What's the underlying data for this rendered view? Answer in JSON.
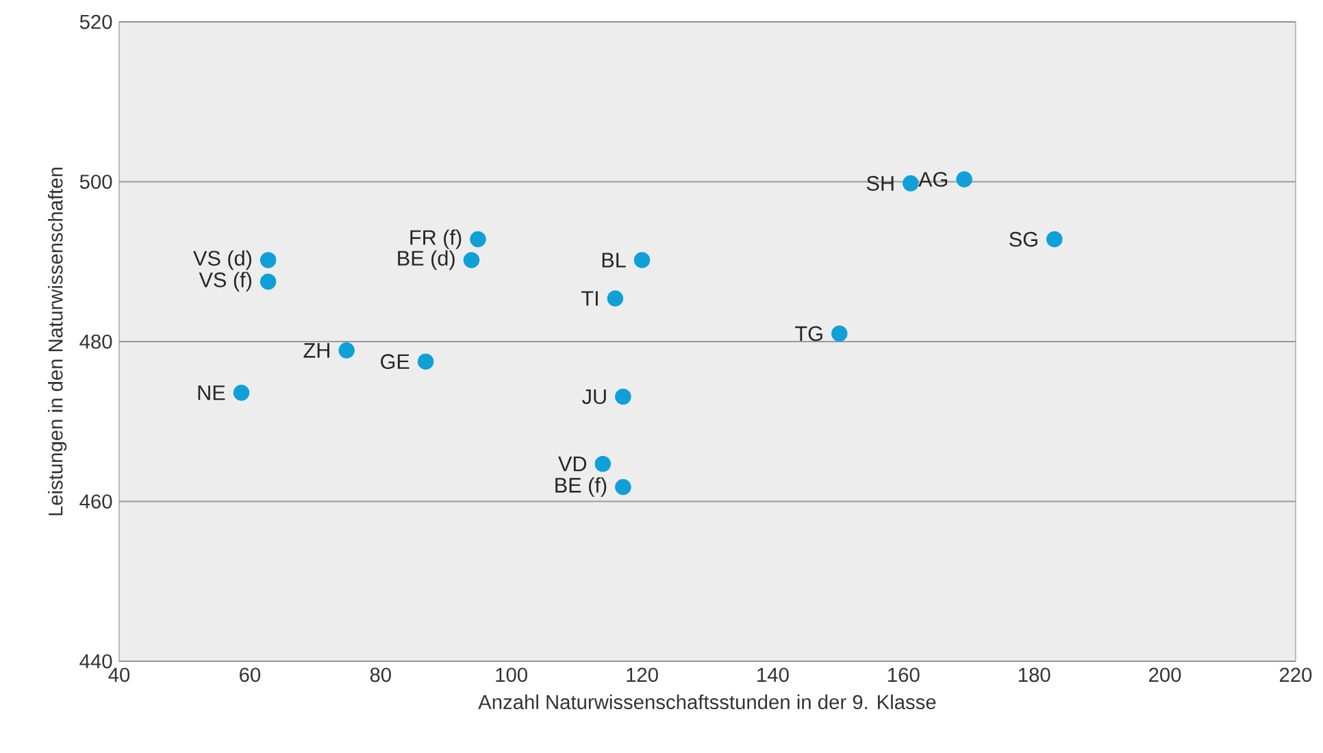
{
  "chart_data": {
    "type": "scatter",
    "xlabel": "Anzahl Naturwissenschaftsstunden in der 9. Klasse",
    "ylabel": "Leistungen in den Naturwissenschaften",
    "xlim": [
      40,
      220
    ],
    "xticks": [
      40,
      60,
      80,
      100,
      120,
      140,
      160,
      180,
      200,
      220
    ],
    "ylim": [
      440,
      520
    ],
    "yticks": [
      440,
      460,
      480,
      500,
      520
    ],
    "grid": "y",
    "series": [
      {
        "color": "#0fa0d8",
        "x": [
          161.1,
          169.3,
          183.1,
          62.8,
          62.8,
          94.9,
          93.9,
          120.0,
          115.9,
          150.2,
          74.8,
          86.9,
          58.7,
          117.1,
          114.0,
          117.1
        ],
        "values": [
          499.8,
          500.3,
          492.8,
          490.2,
          487.5,
          492.8,
          490.2,
          490.2,
          485.4,
          481.0,
          478.9,
          477.5,
          473.6,
          473.1,
          464.7,
          461.8
        ]
      }
    ],
    "annotations": [
      {
        "text": "SH",
        "x": 161.1,
        "y": 499.8
      },
      {
        "text": "AG",
        "x": 169.3,
        "y": 500.3
      },
      {
        "text": "SG",
        "x": 183.1,
        "y": 492.8
      },
      {
        "text": "VS (d)",
        "x": 62.8,
        "y": 490.2
      },
      {
        "text": "VS (f)",
        "x": 62.8,
        "y": 487.5
      },
      {
        "text": "FR (f)",
        "x": 94.9,
        "y": 492.8
      },
      {
        "text": "BE (d)",
        "x": 93.9,
        "y": 490.2
      },
      {
        "text": "BL",
        "x": 120.0,
        "y": 490.2
      },
      {
        "text": "TI",
        "x": 115.9,
        "y": 485.4
      },
      {
        "text": "TG",
        "x": 150.2,
        "y": 481.0
      },
      {
        "text": "ZH",
        "x": 74.8,
        "y": 478.9
      },
      {
        "text": "GE",
        "x": 86.9,
        "y": 477.5
      },
      {
        "text": "NE",
        "x": 58.7,
        "y": 473.6
      },
      {
        "text": "JU",
        "x": 117.1,
        "y": 473.1
      },
      {
        "text": "VD",
        "x": 114.0,
        "y": 464.7
      },
      {
        "text": "BE (f)",
        "x": 117.1,
        "y": 461.8
      }
    ]
  }
}
